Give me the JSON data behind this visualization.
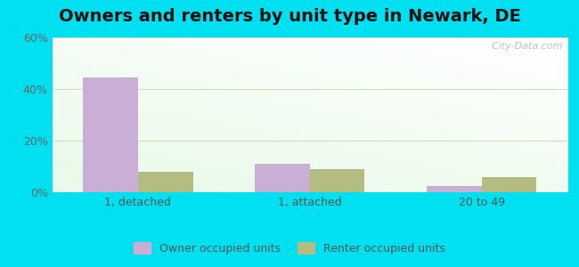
{
  "title": "Owners and renters by unit type in Newark, DE",
  "categories": [
    "1, detached",
    "1, attached",
    "20 to 49"
  ],
  "owner_values": [
    44.5,
    11.0,
    2.5
  ],
  "renter_values": [
    8.0,
    9.0,
    6.0
  ],
  "owner_color": "#c9aed6",
  "renter_color": "#b5bc82",
  "ylim": [
    0,
    60
  ],
  "yticks": [
    0,
    20,
    40,
    60
  ],
  "ytick_labels": [
    "0%",
    "20%",
    "40%",
    "60%"
  ],
  "background_outer": "#00e0f0",
  "grid_color": "#d0ddc0",
  "bar_width": 0.32,
  "legend_labels": [
    "Owner occupied units",
    "Renter occupied units"
  ],
  "watermark": "  City-Data.com",
  "title_fontsize": 14,
  "tick_fontsize": 9,
  "legend_fontsize": 9
}
